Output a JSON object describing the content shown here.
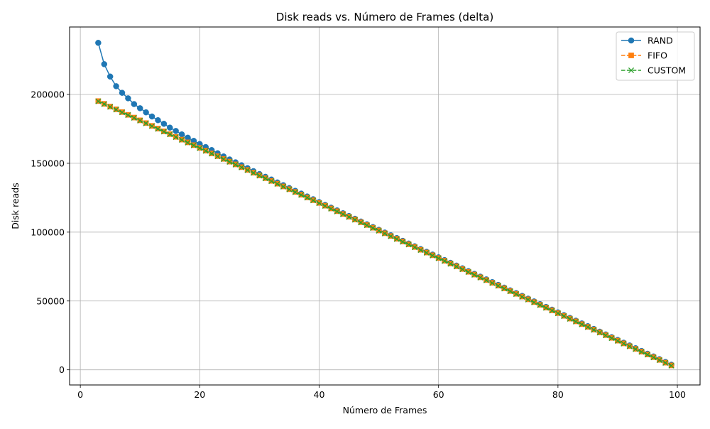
{
  "chart_data": {
    "type": "line",
    "title": "Disk reads vs. Número de Frames (delta)",
    "xlabel": "Número de Frames",
    "ylabel": "Disk reads",
    "xlim": [
      -1.8,
      103.8
    ],
    "ylim": [
      -11000,
      249000
    ],
    "xticks": [
      0,
      20,
      40,
      60,
      80,
      100
    ],
    "xtick_labels": [
      "0",
      "20",
      "40",
      "60",
      "80",
      "100"
    ],
    "yticks": [
      0,
      50000,
      100000,
      150000,
      200000
    ],
    "ytick_labels": [
      "0",
      "50000",
      "100000",
      "150000",
      "200000"
    ],
    "grid": true,
    "legend_position": "top-right",
    "x_start": 3,
    "x_end": 99,
    "series": [
      {
        "name": "RAND",
        "color": "#1f77b4",
        "marker": "circle",
        "linestyle": "solid",
        "values": [
          237500,
          222000,
          213000,
          206000,
          201200,
          197200,
          193000,
          190000,
          187000,
          184000,
          181300,
          178700,
          175900,
          173500,
          171000,
          168600,
          166300,
          164000,
          161800,
          159600,
          157300,
          155000,
          152800,
          150700,
          148600,
          146500,
          144300,
          142200,
          140200,
          138200,
          136100,
          134100,
          132000,
          130000,
          128000,
          125900,
          123900,
          121800,
          119800,
          117800,
          115800,
          113700,
          111700,
          109700,
          107700,
          105700,
          103700,
          101700,
          99700,
          97700,
          95700,
          93700,
          91700,
          89700,
          87700,
          85700,
          83700,
          81700,
          79700,
          77700,
          75700,
          73700,
          71700,
          69700,
          67700,
          65700,
          63700,
          61700,
          59700,
          57700,
          55700,
          53700,
          51700,
          49700,
          47700,
          45700,
          43700,
          41700,
          39700,
          37700,
          35700,
          33700,
          31700,
          29700,
          27700,
          25700,
          23700,
          21700,
          19700,
          17700,
          15700,
          13700,
          11700,
          9700,
          7700,
          5700,
          3700
        ]
      },
      {
        "name": "FIFO",
        "color": "#ff7f0e",
        "marker": "square",
        "linestyle": "dashed",
        "values": [
          195200,
          193200,
          191200,
          189200,
          187200,
          185200,
          183200,
          181200,
          179200,
          177200,
          175200,
          173200,
          171200,
          169200,
          167200,
          165200,
          163200,
          161200,
          159200,
          157200,
          155200,
          153200,
          151200,
          149200,
          147200,
          145200,
          143200,
          141200,
          139200,
          137200,
          135200,
          133200,
          131200,
          129200,
          127200,
          125200,
          123200,
          121200,
          119200,
          117200,
          115200,
          113200,
          111200,
          109200,
          107200,
          105200,
          103200,
          101200,
          99200,
          97200,
          95200,
          93200,
          91200,
          89200,
          87200,
          85200,
          83200,
          81200,
          79200,
          77200,
          75200,
          73200,
          71200,
          69200,
          67200,
          65200,
          63200,
          61200,
          59200,
          57200,
          55200,
          53200,
          51200,
          49200,
          47200,
          45200,
          43200,
          41200,
          39200,
          37200,
          35200,
          33200,
          31200,
          29200,
          27200,
          25200,
          23200,
          21200,
          19200,
          17200,
          15200,
          13200,
          11200,
          9200,
          7200,
          5200,
          3200
        ]
      },
      {
        "name": "CUSTOM",
        "color": "#2ca02c",
        "marker": "x",
        "linestyle": "dashed",
        "values": [
          195000,
          193000,
          191000,
          189000,
          187000,
          185000,
          183000,
          181000,
          179000,
          177000,
          175000,
          173000,
          171000,
          169000,
          167000,
          165000,
          163000,
          161000,
          159000,
          157000,
          155000,
          153000,
          151000,
          149000,
          147000,
          145000,
          143000,
          141000,
          139000,
          137000,
          135000,
          133000,
          131000,
          129000,
          127000,
          125000,
          123000,
          121000,
          119000,
          117000,
          115000,
          113000,
          111000,
          109000,
          107000,
          105000,
          103000,
          101000,
          99000,
          97000,
          95000,
          93000,
          91000,
          89000,
          87000,
          85000,
          83000,
          81000,
          79000,
          77000,
          75000,
          73000,
          71000,
          69000,
          67000,
          65000,
          63000,
          61000,
          59000,
          57000,
          55000,
          53000,
          51000,
          49000,
          47000,
          45000,
          43000,
          41000,
          39000,
          37000,
          35000,
          33000,
          31000,
          29000,
          27000,
          25000,
          23000,
          21000,
          19000,
          17000,
          15000,
          13000,
          11000,
          9000,
          7000,
          5000,
          3000
        ]
      }
    ]
  }
}
